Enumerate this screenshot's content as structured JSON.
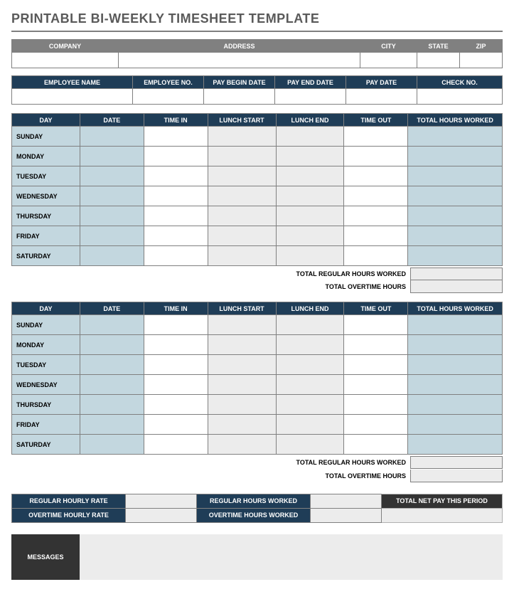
{
  "title": "PRINTABLE BI-WEEKLY TIMESHEET TEMPLATE",
  "company_headers": [
    "COMPANY",
    "ADDRESS",
    "CITY",
    "STATE",
    "ZIP"
  ],
  "company_values": [
    "",
    "",
    "",
    "",
    ""
  ],
  "emp_headers": [
    "EMPLOYEE NAME",
    "EMPLOYEE NO.",
    "PAY BEGIN DATE",
    "PAY END DATE",
    "PAY DATE",
    "CHECK NO."
  ],
  "emp_values": [
    "",
    "",
    "",
    "",
    "",
    ""
  ],
  "week_headers": [
    "DAY",
    "DATE",
    "TIME IN",
    "LUNCH START",
    "LUNCH END",
    "TIME OUT",
    "TOTAL HOURS WORKED"
  ],
  "days": [
    "SUNDAY",
    "MONDAY",
    "TUESDAY",
    "WEDNESDAY",
    "THURSDAY",
    "FRIDAY",
    "SATURDAY"
  ],
  "totals": {
    "regular_label": "TOTAL REGULAR HOURS WORKED",
    "overtime_label": "TOTAL OVERTIME HOURS"
  },
  "pay": {
    "reg_rate_label": "REGULAR HOURLY RATE",
    "ot_rate_label": "OVERTIME HOURLY RATE",
    "reg_hours_label": "REGULAR HOURS WORKED",
    "ot_hours_label": "OVERTIME HOURS WORKED",
    "net_pay_label": "TOTAL NET PAY THIS PERIOD"
  },
  "messages_label": "MESSAGES",
  "colors": {
    "gray_header": "#808080",
    "dark_header": "#1f3d57",
    "light_blue": "#c3d7df",
    "light_grey": "#ececec",
    "charcoal": "#333333",
    "border": "#808080"
  }
}
